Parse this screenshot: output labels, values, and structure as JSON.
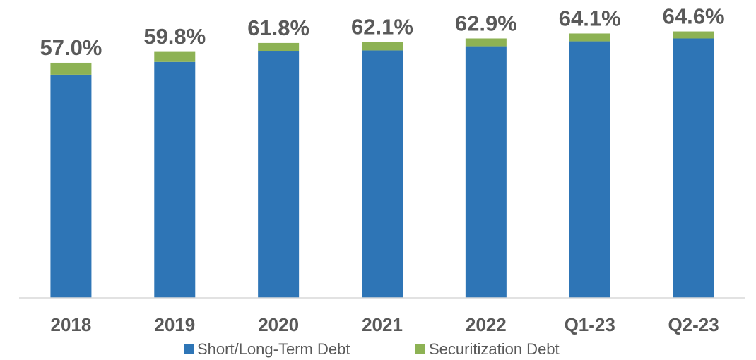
{
  "chart_data": {
    "type": "bar",
    "stacked": true,
    "categories": [
      "2018",
      "2019",
      "2020",
      "2021",
      "2022",
      "Q1-23",
      "Q2-23"
    ],
    "series": [
      {
        "name": "Short/Long-Term Debt",
        "color": "#2e75b6",
        "values": [
          54.1,
          57.2,
          59.9,
          60.0,
          61.0,
          62.2,
          62.9
        ]
      },
      {
        "name": "Securitization Debt",
        "color": "#8db254",
        "values": [
          2.9,
          2.6,
          1.9,
          2.1,
          1.9,
          1.9,
          1.7
        ]
      }
    ],
    "totals": [
      57.0,
      59.8,
      61.8,
      62.1,
      62.9,
      64.1,
      64.6
    ],
    "total_labels": [
      "57.0%",
      "59.8%",
      "61.8%",
      "62.1%",
      "62.9%",
      "64.1%",
      "64.6%"
    ],
    "ylim": [
      0,
      70
    ]
  }
}
